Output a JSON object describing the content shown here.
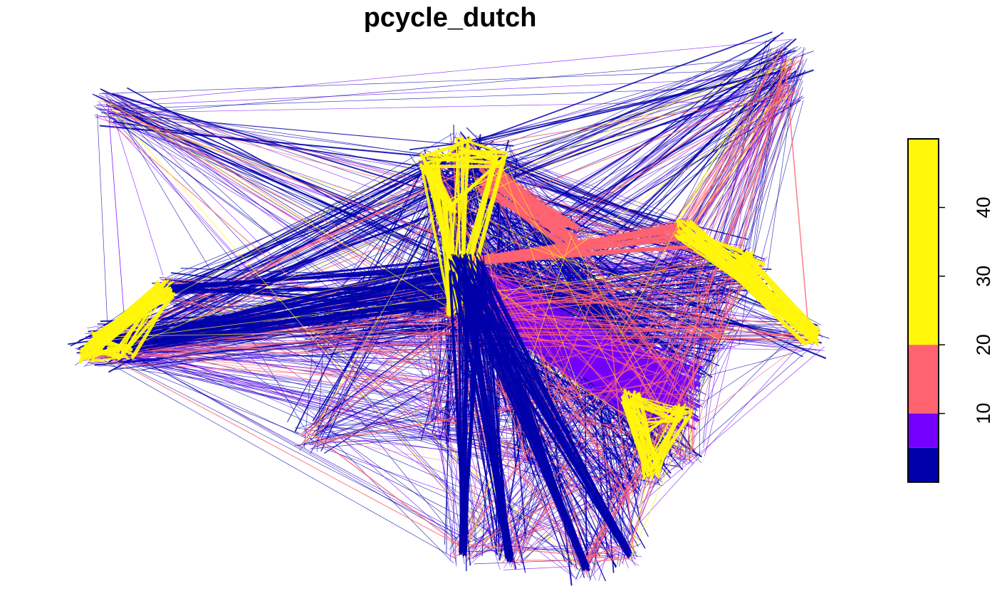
{
  "chart_data": {
    "type": "network",
    "title": "pcycle_dutch",
    "legend": {
      "placement": "right",
      "breaks": [
        0,
        5,
        10,
        20,
        50
      ],
      "colors": [
        "#0000aa",
        "#7300ff",
        "#ff6370",
        "#fff60a"
      ],
      "tick_labels": [
        "10",
        "20",
        "30",
        "40"
      ],
      "tick_values": [
        10,
        20,
        30,
        40
      ]
    }
  }
}
